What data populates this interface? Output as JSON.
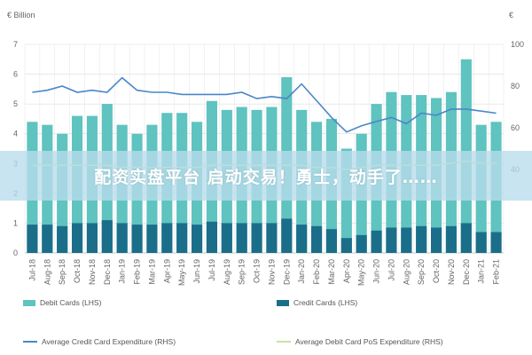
{
  "chart_data": {
    "type": "bar",
    "left_unit": "€ Billion",
    "right_unit": "€",
    "categories": [
      "Jul-18",
      "Aug-18",
      "Sep-18",
      "Oct-18",
      "Nov-18",
      "Dec-18",
      "Jan-19",
      "Feb-19",
      "Mar-19",
      "Apr-19",
      "May-19",
      "Jun-19",
      "Jul-19",
      "Aug-19",
      "Sep-19",
      "Oct-19",
      "Nov-19",
      "Dec-19",
      "Jan-20",
      "Feb-20",
      "Mar-20",
      "Apr-20",
      "May-20",
      "Jun-20",
      "Jul-20",
      "Aug-20",
      "Sep-20",
      "Oct-20",
      "Nov-20",
      "Dec-20",
      "Jan-21",
      "Feb-21"
    ],
    "ylim_left": [
      0,
      7
    ],
    "ylim_right": [
      0,
      100
    ],
    "y_ticks_left": [
      0,
      1,
      2,
      3,
      4,
      5,
      6,
      7
    ],
    "y_ticks_right": [
      40,
      60,
      80,
      100
    ],
    "grid": true,
    "legend_position": "bottom",
    "series": [
      {
        "name": "Debit Cards (LHS)",
        "axis": "left",
        "type": "bar",
        "color": "#5fc3c0",
        "values": [
          4.4,
          4.3,
          4.0,
          4.6,
          4.6,
          5.0,
          4.3,
          4.0,
          4.3,
          4.7,
          4.7,
          4.4,
          5.1,
          4.8,
          4.9,
          4.8,
          4.9,
          5.9,
          4.8,
          4.4,
          4.5,
          3.5,
          4.0,
          5.0,
          5.4,
          5.3,
          5.3,
          5.2,
          5.4,
          6.5,
          4.3,
          4.4
        ]
      },
      {
        "name": "Credit Cards (LHS)",
        "axis": "left",
        "type": "bar",
        "color": "#1b6e8a",
        "values": [
          0.95,
          0.95,
          0.9,
          1.0,
          1.0,
          1.1,
          1.0,
          0.95,
          0.95,
          1.0,
          1.0,
          0.95,
          1.05,
          1.0,
          1.0,
          1.0,
          1.0,
          1.15,
          0.95,
          0.9,
          0.8,
          0.5,
          0.6,
          0.75,
          0.85,
          0.85,
          0.9,
          0.85,
          0.9,
          1.0,
          0.7,
          0.7
        ]
      },
      {
        "name": "Average Credit Card Expenditure (RHS)",
        "axis": "right",
        "type": "line",
        "color": "#4a86c8",
        "values": [
          77,
          78,
          80,
          77,
          78,
          77,
          84,
          78,
          77,
          77,
          76,
          76,
          76,
          76,
          77,
          74,
          75,
          74,
          81,
          73,
          65,
          58,
          61,
          63,
          65,
          62,
          67,
          66,
          69,
          69,
          68,
          67
        ]
      },
      {
        "name": "Average Debit Card PoS Expenditure (RHS)",
        "axis": "right",
        "type": "line",
        "color": "#c7e3a4",
        "values": [
          42,
          42,
          42,
          42,
          42,
          42,
          41,
          41,
          41,
          41,
          41,
          41,
          42,
          42,
          42,
          42,
          42,
          42,
          42,
          41,
          41,
          40,
          41,
          42,
          42,
          42,
          42,
          42,
          43,
          44,
          43,
          43
        ]
      }
    ]
  },
  "banner": {
    "text": "配资实盘平台 启动交易！勇士，动手了……"
  }
}
